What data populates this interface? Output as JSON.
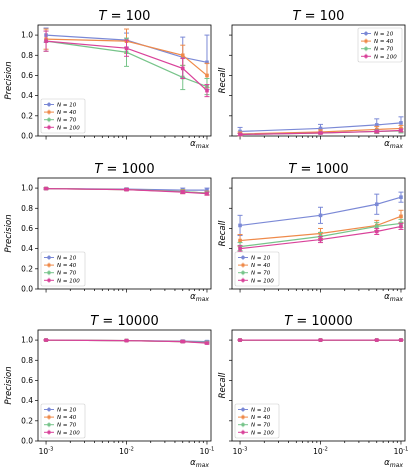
{
  "chart_data": [
    {
      "type": "line",
      "title": "T = 100",
      "ylabel": "Precision",
      "xlabel": "α_max",
      "xscale": "log",
      "ylim": [
        0,
        1.1
      ],
      "yticks": [
        "0.0",
        "0.2",
        "0.4",
        "0.6",
        "0.8",
        "1.0"
      ],
      "x": [
        0.001,
        0.01,
        0.05,
        0.1
      ],
      "legend_position": "lower-left",
      "series": [
        {
          "name": "N = 10",
          "color": "#7b89d6",
          "values": [
            1.0,
            0.95,
            0.78,
            0.73
          ],
          "err": [
            0.07,
            0.07,
            0.2,
            0.27
          ]
        },
        {
          "name": "N = 40",
          "color": "#ef8a4a",
          "values": [
            0.96,
            0.94,
            0.8,
            0.6
          ],
          "err": [
            0.1,
            0.12,
            0.1,
            0.12
          ]
        },
        {
          "name": "N = 70",
          "color": "#77c48a",
          "values": [
            0.94,
            0.83,
            0.58,
            0.49
          ],
          "err": [
            0.1,
            0.14,
            0.12,
            0.08
          ]
        },
        {
          "name": "N = 100",
          "color": "#d9429a",
          "values": [
            0.94,
            0.87,
            0.67,
            0.45
          ],
          "err": [
            0.1,
            0.08,
            0.1,
            0.06
          ]
        }
      ]
    },
    {
      "type": "line",
      "title": "T = 100",
      "ylabel": "Recall",
      "xlabel": "α_max",
      "xscale": "log",
      "ylim": [
        0,
        1.1
      ],
      "x": [
        0.001,
        0.01,
        0.05,
        0.1
      ],
      "legend_position": "upper-right",
      "series": [
        {
          "name": "N = 10",
          "color": "#7b89d6",
          "values": [
            0.045,
            0.075,
            0.11,
            0.13
          ],
          "err": [
            0.04,
            0.04,
            0.06,
            0.06
          ]
        },
        {
          "name": "N = 40",
          "color": "#ef8a4a",
          "values": [
            0.02,
            0.04,
            0.065,
            0.075
          ],
          "err": [
            0.02,
            0.02,
            0.03,
            0.03
          ]
        },
        {
          "name": "N = 70",
          "color": "#77c48a",
          "values": [
            0.015,
            0.03,
            0.045,
            0.05
          ],
          "err": [
            0.01,
            0.01,
            0.02,
            0.02
          ]
        },
        {
          "name": "N = 100",
          "color": "#d9429a",
          "values": [
            0.015,
            0.03,
            0.045,
            0.055
          ],
          "err": [
            0.01,
            0.01,
            0.015,
            0.015
          ]
        }
      ]
    },
    {
      "type": "line",
      "title": "T = 1000",
      "ylabel": "Precision",
      "xlabel": "α_max",
      "xscale": "log",
      "ylim": [
        0,
        1.1
      ],
      "yticks": [
        "0.0",
        "0.2",
        "0.4",
        "0.6",
        "0.8",
        "1.0"
      ],
      "x": [
        0.001,
        0.01,
        0.05,
        0.1
      ],
      "legend_position": "lower-left",
      "series": [
        {
          "name": "N = 10",
          "color": "#7b89d6",
          "values": [
            0.995,
            0.99,
            0.98,
            0.98
          ],
          "err": [
            0.01,
            0.01,
            0.02,
            0.02
          ]
        },
        {
          "name": "N = 40",
          "color": "#ef8a4a",
          "values": [
            0.995,
            0.985,
            0.965,
            0.95
          ],
          "err": [
            0.01,
            0.01,
            0.02,
            0.02
          ]
        },
        {
          "name": "N = 70",
          "color": "#77c48a",
          "values": [
            0.995,
            0.985,
            0.965,
            0.95
          ],
          "err": [
            0.01,
            0.01,
            0.015,
            0.015
          ]
        },
        {
          "name": "N = 100",
          "color": "#d9429a",
          "values": [
            0.995,
            0.985,
            0.96,
            0.945
          ],
          "err": [
            0.005,
            0.01,
            0.015,
            0.015
          ]
        }
      ]
    },
    {
      "type": "line",
      "title": "T = 1000",
      "ylabel": "Recall",
      "xlabel": "α_max",
      "xscale": "log",
      "ylim": [
        0,
        1.1
      ],
      "x": [
        0.001,
        0.01,
        0.05,
        0.1
      ],
      "legend_position": "lower-left",
      "series": [
        {
          "name": "N = 10",
          "color": "#7b89d6",
          "values": [
            0.63,
            0.73,
            0.84,
            0.91
          ],
          "err": [
            0.1,
            0.08,
            0.1,
            0.05
          ]
        },
        {
          "name": "N = 40",
          "color": "#ef8a4a",
          "values": [
            0.48,
            0.55,
            0.63,
            0.72
          ],
          "err": [
            0.06,
            0.05,
            0.05,
            0.06
          ]
        },
        {
          "name": "N = 70",
          "color": "#77c48a",
          "values": [
            0.42,
            0.52,
            0.62,
            0.65
          ],
          "err": [
            0.04,
            0.04,
            0.04,
            0.04
          ]
        },
        {
          "name": "N = 100",
          "color": "#d9429a",
          "values": [
            0.4,
            0.49,
            0.57,
            0.62
          ],
          "err": [
            0.03,
            0.03,
            0.03,
            0.03
          ]
        }
      ]
    },
    {
      "type": "line",
      "title": "T = 10000",
      "ylabel": "Precision",
      "xlabel": "α_max",
      "xscale": "log",
      "ylim": [
        0,
        1.1
      ],
      "yticks": [
        "0.0",
        "0.2",
        "0.4",
        "0.6",
        "0.8",
        "1.0"
      ],
      "x": [
        0.001,
        0.01,
        0.05,
        0.1
      ],
      "xticks": [
        "10^-3",
        "10^-2",
        "10^-1"
      ],
      "legend_position": "lower-left",
      "series": [
        {
          "name": "N = 10",
          "color": "#7b89d6",
          "values": [
            1.0,
            0.995,
            0.99,
            0.985
          ],
          "err": [
            0.005,
            0.005,
            0.01,
            0.01
          ]
        },
        {
          "name": "N = 40",
          "color": "#ef8a4a",
          "values": [
            1.0,
            0.995,
            0.985,
            0.975
          ],
          "err": [
            0.005,
            0.005,
            0.01,
            0.01
          ]
        },
        {
          "name": "N = 70",
          "color": "#77c48a",
          "values": [
            1.0,
            0.995,
            0.985,
            0.975
          ],
          "err": [
            0.005,
            0.005,
            0.01,
            0.01
          ]
        },
        {
          "name": "N = 100",
          "color": "#d9429a",
          "values": [
            1.0,
            0.995,
            0.985,
            0.97
          ],
          "err": [
            0.005,
            0.005,
            0.01,
            0.01
          ]
        }
      ]
    },
    {
      "type": "line",
      "title": "T = 10000",
      "ylabel": "Recall",
      "xlabel": "α_max",
      "xscale": "log",
      "ylim": [
        0,
        1.1
      ],
      "x": [
        0.001,
        0.01,
        0.05,
        0.1
      ],
      "xticks": [
        "10^-3",
        "10^-2",
        "10^-1"
      ],
      "legend_position": "lower-left",
      "series": [
        {
          "name": "N = 10",
          "color": "#7b89d6",
          "values": [
            1.0,
            1.0,
            1.0,
            1.0
          ],
          "err": [
            0.003,
            0.003,
            0.003,
            0.003
          ]
        },
        {
          "name": "N = 40",
          "color": "#ef8a4a",
          "values": [
            1.0,
            1.0,
            1.0,
            1.0
          ],
          "err": [
            0.003,
            0.003,
            0.003,
            0.003
          ]
        },
        {
          "name": "N = 70",
          "color": "#77c48a",
          "values": [
            1.0,
            1.0,
            1.0,
            1.0
          ],
          "err": [
            0.003,
            0.003,
            0.003,
            0.003
          ]
        },
        {
          "name": "N = 100",
          "color": "#d9429a",
          "values": [
            1.0,
            1.0,
            1.0,
            1.0
          ],
          "err": [
            0.003,
            0.003,
            0.003,
            0.003
          ]
        }
      ]
    }
  ]
}
